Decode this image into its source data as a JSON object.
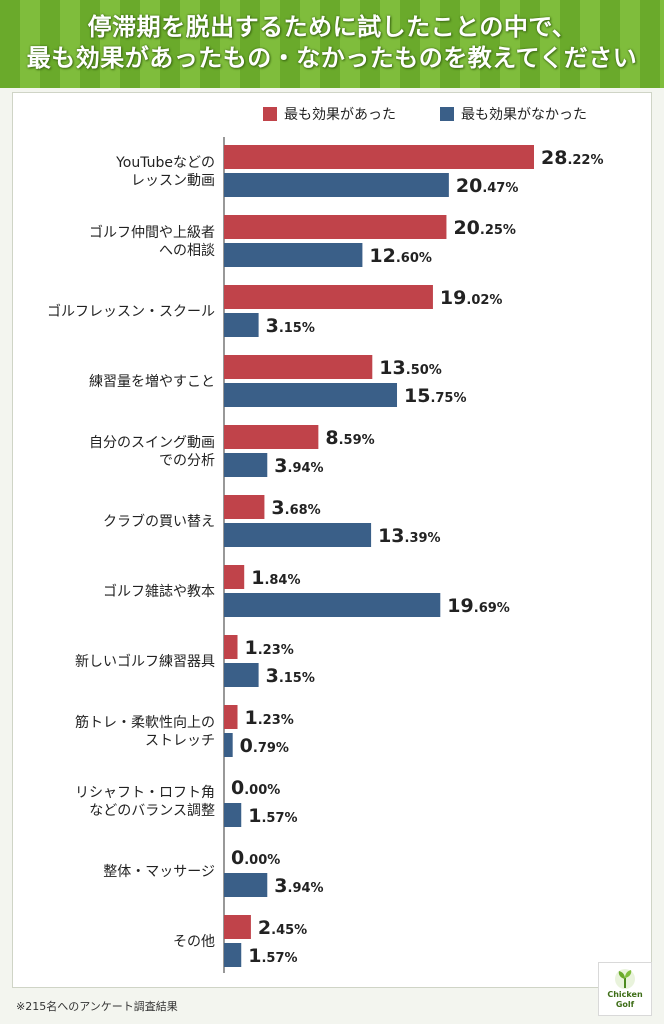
{
  "title_lines": [
    "停滞期を脱出するために試したことの中で、",
    "最も効果があったもの・なかったものを教えてください"
  ],
  "footnote": "※215名へのアンケート調査結果",
  "logo": {
    "name_line1": "Chicken",
    "name_line2": "Golf"
  },
  "colors": {
    "effective": "#c0434a",
    "not_effective": "#3a5f88"
  },
  "chart_data": {
    "type": "bar",
    "orientation": "horizontal",
    "unit": "%",
    "categories": [
      [
        "YouTubeなどの",
        "レッスン動画"
      ],
      [
        "ゴルフ仲間や上級者",
        "への相談"
      ],
      [
        "ゴルフレッスン・スクール"
      ],
      [
        "練習量を増やすこと"
      ],
      [
        "自分のスイング動画",
        "での分析"
      ],
      [
        "クラブの買い替え"
      ],
      [
        "ゴルフ雑誌や教本"
      ],
      [
        "新しいゴルフ練習器具"
      ],
      [
        "筋トレ・柔軟性向上の",
        "ストレッチ"
      ],
      [
        "リシャフト・ロフト角",
        "などのバランス調整"
      ],
      [
        "整体・マッサージ"
      ],
      [
        "その他"
      ]
    ],
    "series": [
      {
        "name": "最も効果があった",
        "color": "#c0434a",
        "values": [
          28.22,
          20.25,
          19.02,
          13.5,
          8.59,
          3.68,
          1.84,
          1.23,
          1.23,
          0.0,
          0.0,
          2.45
        ]
      },
      {
        "name": "最も効果がなかった",
        "color": "#3a5f88",
        "values": [
          20.47,
          12.6,
          3.15,
          15.75,
          3.94,
          13.39,
          19.69,
          3.15,
          0.79,
          1.57,
          3.94,
          1.57
        ]
      }
    ],
    "xlim": [
      0,
      28.22
    ],
    "legend_position": "top-right",
    "grid": false
  }
}
